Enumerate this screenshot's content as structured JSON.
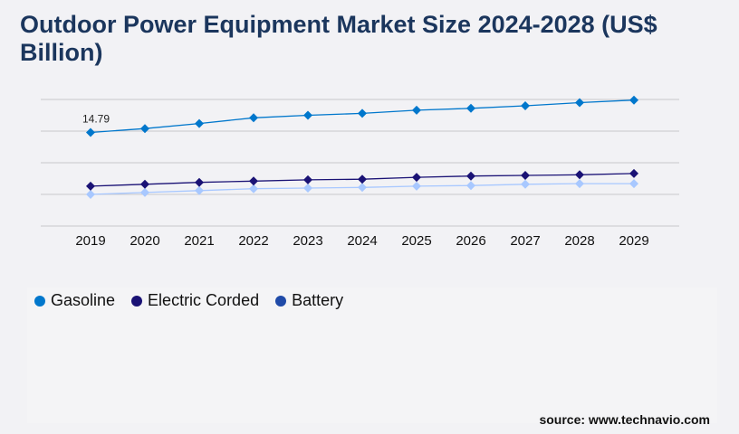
{
  "chart_data": {
    "type": "line",
    "title": "Outdoor Power Equipment Market Size 2024-2028 (US$ Billion)",
    "categories": [
      "2019",
      "2020",
      "2021",
      "2022",
      "2023",
      "2024",
      "2025",
      "2026",
      "2027",
      "2028",
      "2029"
    ],
    "series": [
      {
        "name": "Gasoline",
        "color": "#0077cc",
        "legend_color": "#0077cc",
        "values": [
          14.79,
          15.4,
          16.2,
          17.1,
          17.5,
          17.8,
          18.3,
          18.6,
          19.0,
          19.5,
          19.9
        ]
      },
      {
        "name": "Electric Corded",
        "color": "#1a1275",
        "legend_color": "#1a1275",
        "values": [
          6.3,
          6.6,
          6.9,
          7.1,
          7.3,
          7.4,
          7.7,
          7.9,
          8.0,
          8.1,
          8.3
        ]
      },
      {
        "name": "Battery",
        "color": "#a8c8ff",
        "legend_color": "#1f4aa8",
        "values": [
          5.0,
          5.3,
          5.6,
          5.9,
          6.0,
          6.1,
          6.3,
          6.4,
          6.6,
          6.7,
          6.7
        ]
      }
    ],
    "data_labels": [
      {
        "series": "Gasoline",
        "category": "2019",
        "text": "14.79"
      }
    ],
    "ylim": [
      0,
      20
    ],
    "grid": true,
    "legend": "bottom-left"
  },
  "source": "source: www.technavio.com"
}
